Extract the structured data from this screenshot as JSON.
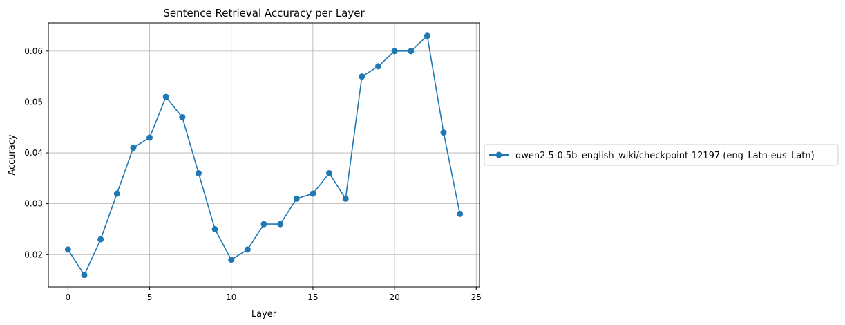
{
  "chart_data": {
    "type": "line",
    "title": "Sentence Retrieval Accuracy per Layer",
    "xlabel": "Layer",
    "ylabel": "Accuracy",
    "xlim": [
      -1.2,
      25.2
    ],
    "ylim": [
      0.01365,
      0.06555
    ],
    "xticks": [
      0,
      5,
      10,
      15,
      20,
      25
    ],
    "yticks": [
      0.02,
      0.03,
      0.04,
      0.05,
      0.06
    ],
    "xtick_labels": [
      "0",
      "5",
      "10",
      "15",
      "20",
      "25"
    ],
    "ytick_labels": [
      "0.02",
      "0.03",
      "0.04",
      "0.05",
      "0.06"
    ],
    "grid": true,
    "legend_position": "right, outside plot",
    "series": [
      {
        "name": "qwen2.5-0.5b_english_wiki/checkpoint-12197 (eng_Latn-eus_Latn)",
        "color": "#1f77b4",
        "marker": "circle",
        "x": [
          0,
          1,
          2,
          3,
          4,
          5,
          6,
          7,
          8,
          9,
          10,
          11,
          12,
          13,
          14,
          15,
          16,
          17,
          18,
          19,
          20,
          21,
          22,
          23,
          24
        ],
        "values": [
          0.021,
          0.016,
          0.023,
          0.032,
          0.041,
          0.043,
          0.051,
          0.047,
          0.036,
          0.025,
          0.019,
          0.021,
          0.026,
          0.026,
          0.031,
          0.032,
          0.036,
          0.031,
          0.055,
          0.057,
          0.06,
          0.06,
          0.063,
          0.044,
          0.028
        ]
      }
    ]
  }
}
